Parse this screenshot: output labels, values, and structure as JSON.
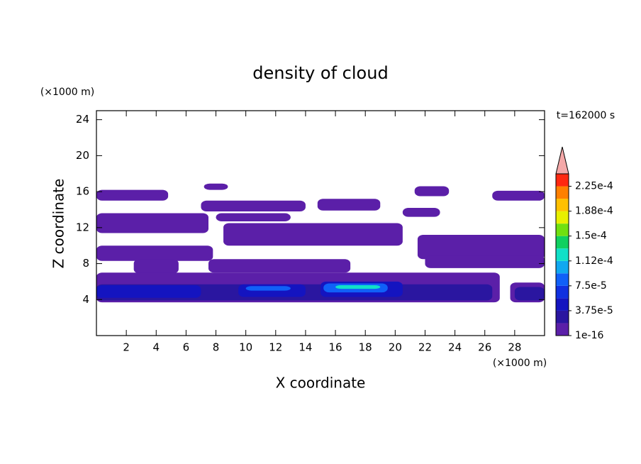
{
  "chart_data": {
    "type": "contour",
    "title": "density of cloud",
    "xlabel": "X coordinate",
    "ylabel": "Z coordinate",
    "xunit": "(×1000 m)",
    "yunit": "(×1000 m)",
    "time_label": "t=162000 s",
    "xlim": [
      0,
      30
    ],
    "ylim": [
      0,
      25
    ],
    "xticks": [
      2,
      4,
      6,
      8,
      10,
      12,
      14,
      16,
      18,
      20,
      22,
      24,
      26,
      28
    ],
    "yticks": [
      4,
      8,
      12,
      16,
      20,
      24
    ],
    "levels": [
      1e-16,
      1.875e-05,
      3.75e-05,
      5.625e-05,
      7.5e-05,
      9.375e-05,
      0.0001125,
      0.00013125,
      0.00015,
      0.00016875,
      0.0001875,
      0.00020625,
      0.000225,
      0.00024375
    ],
    "colors": [
      "#5b1fa8",
      "#2a16a0",
      "#1414c0",
      "#1030e0",
      "#1060f8",
      "#10a8f0",
      "#10e0c8",
      "#10d060",
      "#70e010",
      "#e8f000",
      "#ffc000",
      "#ff8000",
      "#ff2810"
    ],
    "overflow_color": "#f4a8a8",
    "cbticks": [
      {
        "value": 1e-16,
        "label": "1e-16"
      },
      {
        "value": 3.75e-05,
        "label": "3.75e-5"
      },
      {
        "value": 7.5e-05,
        "label": "7.5e-5"
      },
      {
        "value": 0.0001125,
        "label": "1.12e-4"
      },
      {
        "value": 0.00015,
        "label": "1.5e-4"
      },
      {
        "value": 0.0001875,
        "label": "1.88e-4"
      },
      {
        "value": 0.000225,
        "label": "2.25e-4"
      }
    ],
    "regions": [
      {
        "x0": 0,
        "x1": 4.8,
        "z0": 15.0,
        "z1": 16.2,
        "level": 0
      },
      {
        "x0": 7.2,
        "x1": 8.8,
        "z0": 16.2,
        "z1": 16.9,
        "level": 0
      },
      {
        "x0": 7,
        "x1": 14,
        "z0": 13.8,
        "z1": 15.0,
        "level": 0
      },
      {
        "x0": 14.8,
        "x1": 19,
        "z0": 13.9,
        "z1": 15.2,
        "level": 0
      },
      {
        "x0": 21.3,
        "x1": 23.6,
        "z0": 15.5,
        "z1": 16.6,
        "level": 0
      },
      {
        "x0": 26.5,
        "x1": 30,
        "z0": 15.0,
        "z1": 16.1,
        "level": 0
      },
      {
        "x0": 0,
        "x1": 7.5,
        "z0": 11.4,
        "z1": 13.6,
        "level": 0
      },
      {
        "x0": 8,
        "x1": 13,
        "z0": 12.7,
        "z1": 13.6,
        "level": 0
      },
      {
        "x0": 20.5,
        "x1": 23,
        "z0": 13.2,
        "z1": 14.2,
        "level": 0
      },
      {
        "x0": 8.5,
        "x1": 20.5,
        "z0": 10.0,
        "z1": 12.5,
        "level": 0
      },
      {
        "x0": 0,
        "x1": 7.8,
        "z0": 8.3,
        "z1": 10.0,
        "level": 0
      },
      {
        "x0": 21.5,
        "x1": 30,
        "z0": 8.5,
        "z1": 11.2,
        "level": 0
      },
      {
        "x0": 22,
        "x1": 30,
        "z0": 7.5,
        "z1": 8.9,
        "level": 0
      },
      {
        "x0": 2.5,
        "x1": 5.5,
        "z0": 6.9,
        "z1": 8.5,
        "level": 0
      },
      {
        "x0": 7.5,
        "x1": 17,
        "z0": 7.0,
        "z1": 8.5,
        "level": 0
      },
      {
        "x0": 0,
        "x1": 27,
        "z0": 3.7,
        "z1": 7.0,
        "level": 0
      },
      {
        "x0": 27.7,
        "x1": 30,
        "z0": 3.7,
        "z1": 5.9,
        "level": 0
      },
      {
        "x0": 0,
        "x1": 26.5,
        "z0": 3.9,
        "z1": 5.7,
        "level": 1
      },
      {
        "x0": 28,
        "x1": 30,
        "z0": 3.9,
        "z1": 5.4,
        "level": 1
      },
      {
        "x0": 0,
        "x1": 7,
        "z0": 4.2,
        "z1": 5.6,
        "level": 2
      },
      {
        "x0": 9.5,
        "x1": 14,
        "z0": 4.3,
        "z1": 5.7,
        "level": 2
      },
      {
        "x0": 15,
        "x1": 20.5,
        "z0": 4.3,
        "z1": 6.0,
        "level": 2
      },
      {
        "x0": 10,
        "x1": 13,
        "z0": 5.0,
        "z1": 5.5,
        "level": 4
      },
      {
        "x0": 15.2,
        "x1": 19.5,
        "z0": 4.8,
        "z1": 5.8,
        "level": 4
      },
      {
        "x0": 16,
        "x1": 19,
        "z0": 5.2,
        "z1": 5.6,
        "level": 6
      }
    ]
  }
}
